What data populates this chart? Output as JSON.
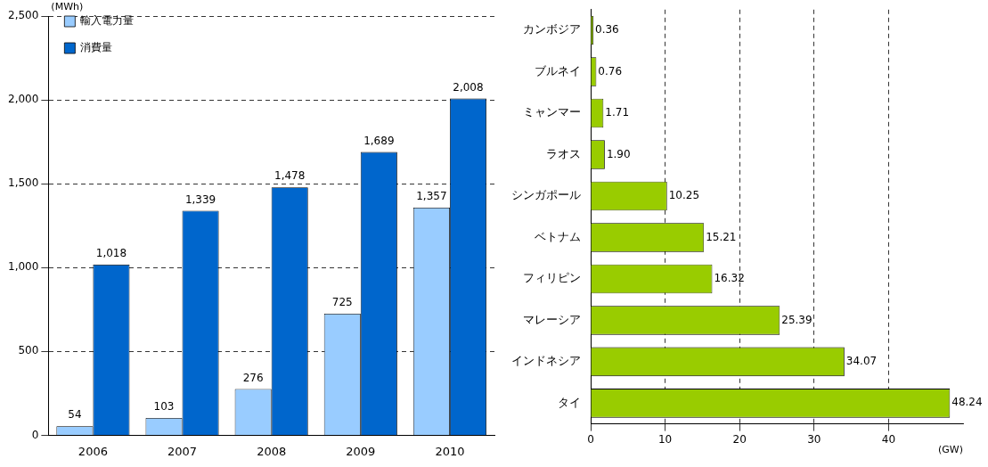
{
  "chart_data": [
    {
      "type": "bar",
      "ylabel": "(MWh)",
      "categories": [
        "2006",
        "2007",
        "2008",
        "2009",
        "2010"
      ],
      "series": [
        {
          "name": "輸入電力量",
          "color": "#99ccff",
          "values": [
            54,
            103,
            276,
            725,
            1357
          ],
          "value_labels": [
            "54",
            "103",
            "276",
            "725",
            "1,357"
          ]
        },
        {
          "name": "消費量",
          "color": "#0066cc",
          "values": [
            1018,
            1339,
            1478,
            1689,
            2008
          ],
          "value_labels": [
            "1,018",
            "1,339",
            "1,478",
            "1,689",
            "2,008"
          ]
        }
      ],
      "ylim": [
        0,
        2500
      ],
      "yticks": [
        0,
        500,
        {
          "value": 1000,
          "label": "1,000"
        },
        {
          "value": 1500,
          "label": "1,500"
        },
        {
          "value": 2000,
          "label": "2,000"
        },
        {
          "value": 2500,
          "label": "2,500"
        }
      ],
      "grid": "y",
      "legend": "top left"
    },
    {
      "type": "bar",
      "orientation": "horizontal",
      "xlabel": "(GW)",
      "categories": [
        "カンボジア",
        "ブルネイ",
        "ミャンマー",
        "ラオス",
        "シンガポール",
        "ベトナム",
        "フィリピン",
        "マレーシア",
        "インドネシア",
        "タイ"
      ],
      "values": [
        0.36,
        0.76,
        1.71,
        1.9,
        10.25,
        15.21,
        16.32,
        25.39,
        34.07,
        48.24
      ],
      "value_labels": [
        "0.36",
        "0.76",
        "1.71",
        "1.90",
        "10.25",
        "15.21",
        "16.32",
        "25.39",
        "34.07",
        "48.24"
      ],
      "color": "#99cc00",
      "xlim": [
        0,
        50
      ],
      "xticks": [
        0,
        10,
        20,
        30,
        40
      ],
      "grid": "x"
    }
  ]
}
